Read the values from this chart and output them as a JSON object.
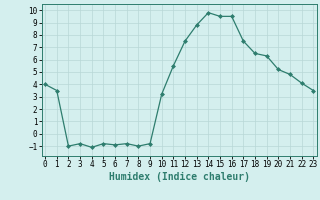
{
  "x": [
    0,
    1,
    2,
    3,
    4,
    5,
    6,
    7,
    8,
    9,
    10,
    11,
    12,
    13,
    14,
    15,
    16,
    17,
    18,
    19,
    20,
    21,
    22,
    23
  ],
  "y": [
    4,
    3.5,
    -1,
    -0.8,
    -1.1,
    -0.8,
    -0.9,
    -0.8,
    -1,
    -0.8,
    3.2,
    5.5,
    7.5,
    8.8,
    9.8,
    9.5,
    9.5,
    7.5,
    6.5,
    6.3,
    5.2,
    4.8,
    4.1,
    3.5
  ],
  "line_color": "#2e7d6e",
  "bg_color": "#d4efee",
  "grid_color": "#b8d8d6",
  "xlabel": "Humidex (Indice chaleur)",
  "ylim": [
    -1.8,
    10.5
  ],
  "xlim": [
    -0.3,
    23.3
  ],
  "yticks": [
    -1,
    0,
    1,
    2,
    3,
    4,
    5,
    6,
    7,
    8,
    9,
    10
  ],
  "xticks": [
    0,
    1,
    2,
    3,
    4,
    5,
    6,
    7,
    8,
    9,
    10,
    11,
    12,
    13,
    14,
    15,
    16,
    17,
    18,
    19,
    20,
    21,
    22,
    23
  ],
  "marker": "D",
  "markersize": 2.0,
  "linewidth": 0.9,
  "xlabel_fontsize": 7,
  "tick_fontsize": 5.5
}
